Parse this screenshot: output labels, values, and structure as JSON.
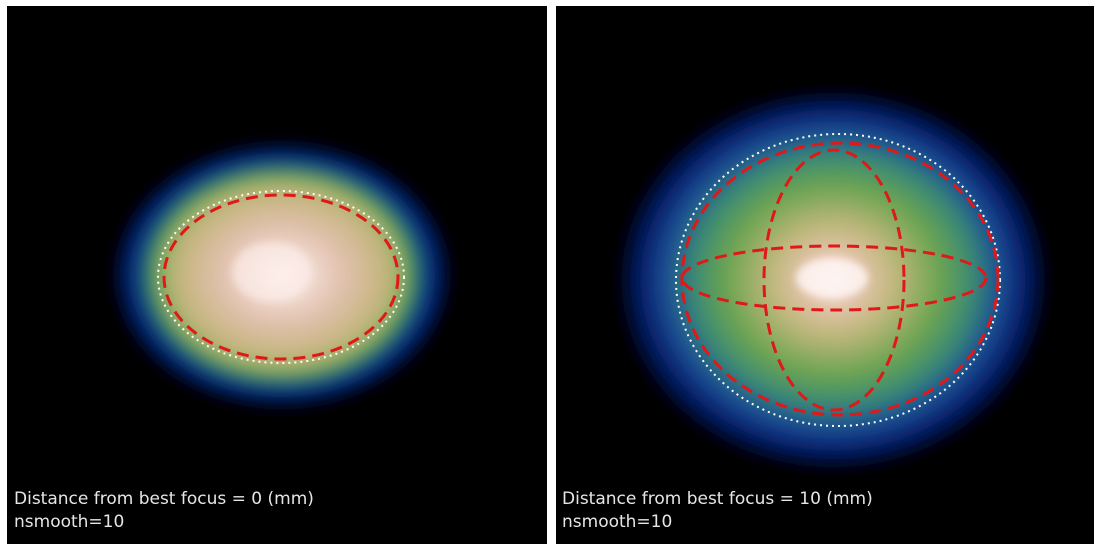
{
  "panels": [
    {
      "caption": "Distance from best focus = 0 (mm)",
      "note": "nsmooth=10"
    },
    {
      "caption": "Distance from best focus = 10 (mm)",
      "note": "nsmooth=10"
    }
  ]
}
